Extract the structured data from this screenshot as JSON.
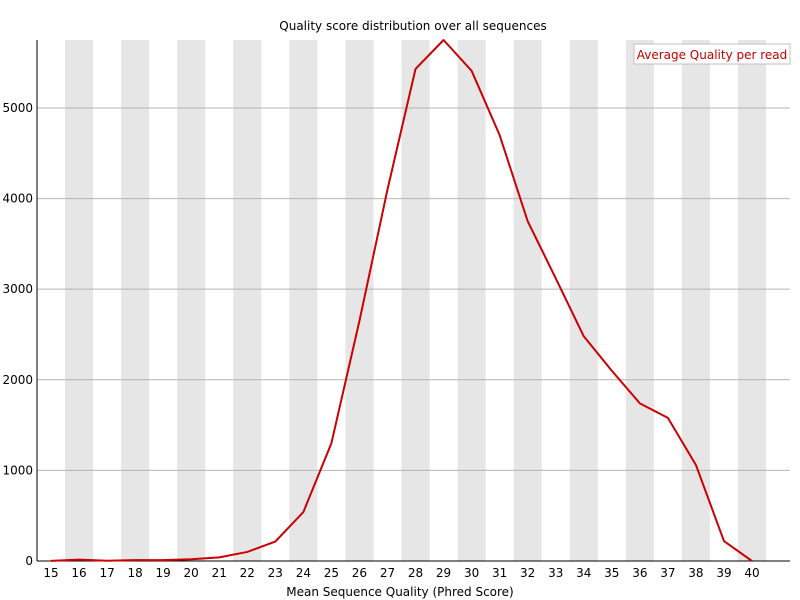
{
  "chart_data": {
    "type": "line",
    "title": "Quality score distribution over all sequences",
    "xlabel": "Mean Sequence Quality (Phred Score)",
    "ylabel": "",
    "x": [
      15,
      16,
      17,
      18,
      19,
      20,
      21,
      22,
      23,
      24,
      25,
      26,
      27,
      28,
      29,
      30,
      31,
      32,
      33,
      34,
      35,
      36,
      37,
      38,
      39,
      40
    ],
    "xlim": [
      15,
      40
    ],
    "ylim": [
      0,
      5750
    ],
    "y_ticks": [
      0,
      1000,
      2000,
      3000,
      4000,
      5000
    ],
    "series": [
      {
        "name": "Average Quality per read",
        "color": "#cc0000",
        "values": [
          2,
          15,
          3,
          10,
          10,
          20,
          40,
          100,
          215,
          540,
          1300,
          2650,
          4100,
          5430,
          5750,
          5410,
          4700,
          3750,
          3120,
          2480,
          2100,
          1740,
          1580,
          1060,
          220,
          0
        ]
      }
    ],
    "legend_position": "top-right",
    "grid": true,
    "band_color": "#e6e6e6",
    "grid_color": "#b4b4b4"
  }
}
